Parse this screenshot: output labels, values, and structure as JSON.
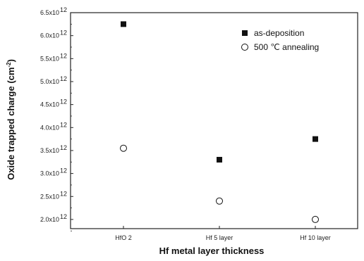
{
  "chart_data": {
    "type": "scatter",
    "title": "",
    "xlabel": "Hf metal layer thickness",
    "ylabel_main": "Oxide trapped charge (cm",
    "ylabel_sup": "-2",
    "ylabel_end": ")",
    "categories": [
      "HfO 2",
      "Hf 5 layer",
      "Hf 10 layer"
    ],
    "ylim": [
      1.8,
      6.5
    ],
    "yticks": [
      2.0,
      2.5,
      3.0,
      3.5,
      4.0,
      4.5,
      5.0,
      5.5,
      6.0,
      6.5
    ],
    "ytick_labels": [
      "2.0x10",
      "2.5x10",
      "3.0x10",
      "3.5x10",
      "4.0x10",
      "4.5x10",
      "5.0x10",
      "5.5x10",
      "6.0x10",
      "6.5x10"
    ],
    "ytick_exponent": "12",
    "legend_position": "top-right",
    "grid": false,
    "series": [
      {
        "name": "as-deposition",
        "marker": "filled-square",
        "color": "#111111",
        "values": [
          6.25,
          3.3,
          3.75
        ]
      },
      {
        "name": "500 ℃ annealing",
        "marker": "open-circle",
        "color": "#111111",
        "values": [
          3.55,
          2.4,
          2.0
        ]
      }
    ]
  }
}
